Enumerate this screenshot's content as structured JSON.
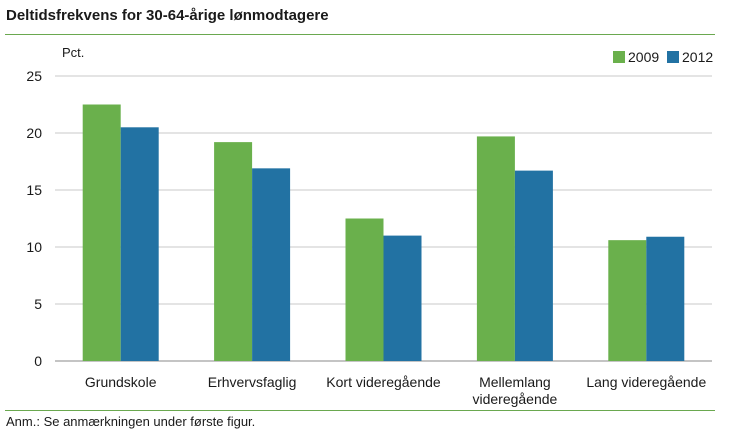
{
  "title": "Deltidsfrekvens for 30-64-årige lønmodtagere",
  "note": "Anm.: Se anmærkningen under første figur.",
  "chart_data": {
    "type": "bar",
    "ylabel": "Pct.",
    "ylim": [
      0,
      25
    ],
    "yticks": [
      "0",
      "5",
      "10",
      "15",
      "20",
      "25"
    ],
    "grid": true,
    "legend_position": "top-right",
    "categories": [
      [
        "Grundskole"
      ],
      [
        "Erhvervsfaglig"
      ],
      [
        "Kort videregående"
      ],
      [
        "Mellemlang",
        "videregående"
      ],
      [
        "Lang videregående"
      ]
    ],
    "series": [
      {
        "name": "2009",
        "color": "#6ab04c",
        "values": [
          22.5,
          19.2,
          12.5,
          19.7,
          10.6
        ]
      },
      {
        "name": "2012",
        "color": "#2272a3",
        "values": [
          20.5,
          16.9,
          11.0,
          16.7,
          10.9
        ]
      }
    ]
  }
}
